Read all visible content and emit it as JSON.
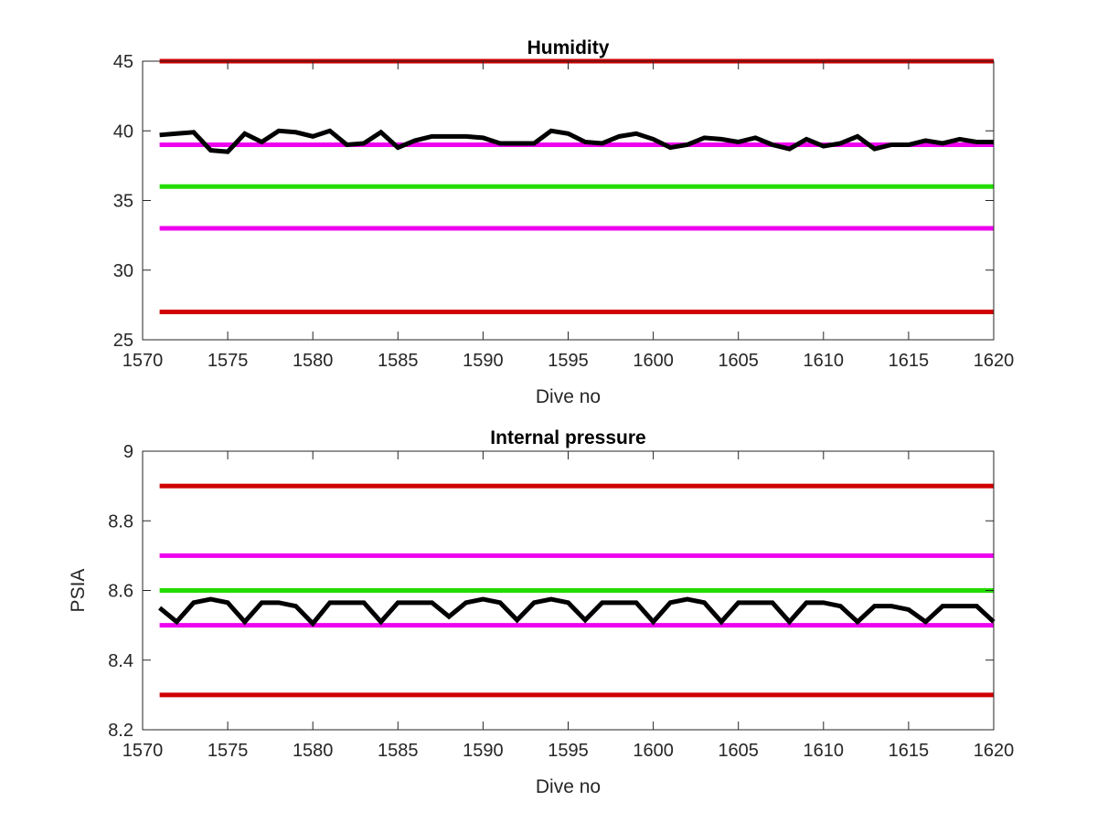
{
  "chart_data": [
    {
      "type": "line",
      "title": "Humidity",
      "xlabel": "Dive no",
      "ylabel": "",
      "xlim": [
        1570,
        1620
      ],
      "ylim": [
        25,
        45
      ],
      "xticks": [
        1570,
        1575,
        1580,
        1585,
        1590,
        1595,
        1600,
        1605,
        1610,
        1615,
        1620
      ],
      "yticks": [
        25,
        30,
        35,
        40,
        45
      ],
      "xtick_labels": [
        "1570",
        "1575",
        "1580",
        "1585",
        "1590",
        "1595",
        "1600",
        "1605",
        "1610",
        "1615",
        "1620"
      ],
      "ytick_labels": [
        "25",
        "30",
        "35",
        "40",
        "45"
      ],
      "grid": false,
      "series": [
        {
          "color": "#000000",
          "x": [
            1571,
            1572,
            1573,
            1574,
            1575,
            1576,
            1577,
            1578,
            1579,
            1580,
            1581,
            1582,
            1583,
            1584,
            1585,
            1586,
            1587,
            1588,
            1589,
            1590,
            1591,
            1592,
            1593,
            1594,
            1595,
            1596,
            1597,
            1598,
            1599,
            1600,
            1601,
            1602,
            1603,
            1604,
            1605,
            1606,
            1607,
            1608,
            1609,
            1610,
            1611,
            1612,
            1613,
            1614,
            1615,
            1616,
            1617,
            1618,
            1619,
            1620
          ],
          "values": [
            39.7,
            39.8,
            39.9,
            38.6,
            38.5,
            39.8,
            39.2,
            40.0,
            39.9,
            39.6,
            40.0,
            39.0,
            39.1,
            39.9,
            38.8,
            39.3,
            39.6,
            39.6,
            39.6,
            39.5,
            39.1,
            39.1,
            39.1,
            40.0,
            39.8,
            39.2,
            39.1,
            39.6,
            39.8,
            39.4,
            38.8,
            39.0,
            39.5,
            39.4,
            39.2,
            39.5,
            39.0,
            38.7,
            39.4,
            38.9,
            39.1,
            39.6,
            38.7,
            39.0,
            39.0,
            39.3,
            39.1,
            39.4,
            39.2,
            39.2
          ]
        },
        {
          "color": "#d00000",
          "x": [
            1571,
            1620
          ],
          "values": [
            45,
            45
          ]
        },
        {
          "color": "#ee00ee",
          "x": [
            1571,
            1620
          ],
          "values": [
            39,
            39
          ]
        },
        {
          "color": "#22dd00",
          "x": [
            1571,
            1620
          ],
          "values": [
            36,
            36
          ]
        },
        {
          "color": "#ee00ee",
          "x": [
            1571,
            1620
          ],
          "values": [
            33,
            33
          ]
        },
        {
          "color": "#d00000",
          "x": [
            1571,
            1620
          ],
          "values": [
            27,
            27
          ]
        }
      ]
    },
    {
      "type": "line",
      "title": "Internal pressure",
      "xlabel": "Dive no",
      "ylabel": "PSIA",
      "xlim": [
        1570,
        1620
      ],
      "ylim": [
        8.2,
        9
      ],
      "xticks": [
        1570,
        1575,
        1580,
        1585,
        1590,
        1595,
        1600,
        1605,
        1610,
        1615,
        1620
      ],
      "yticks": [
        8.2,
        8.4,
        8.6,
        8.8,
        9
      ],
      "xtick_labels": [
        "1570",
        "1575",
        "1580",
        "1585",
        "1590",
        "1595",
        "1600",
        "1605",
        "1610",
        "1615",
        "1620"
      ],
      "ytick_labels": [
        "8.2",
        "8.4",
        "8.6",
        "8.8",
        "9"
      ],
      "grid": false,
      "series": [
        {
          "color": "#000000",
          "x": [
            1571,
            1572,
            1573,
            1574,
            1575,
            1576,
            1577,
            1578,
            1579,
            1580,
            1581,
            1582,
            1583,
            1584,
            1585,
            1586,
            1587,
            1588,
            1589,
            1590,
            1591,
            1592,
            1593,
            1594,
            1595,
            1596,
            1597,
            1598,
            1599,
            1600,
            1601,
            1602,
            1603,
            1604,
            1605,
            1606,
            1607,
            1608,
            1609,
            1610,
            1611,
            1612,
            1613,
            1614,
            1615,
            1616,
            1617,
            1618,
            1619,
            1620
          ],
          "values": [
            8.55,
            8.51,
            8.565,
            8.575,
            8.565,
            8.51,
            8.565,
            8.565,
            8.555,
            8.505,
            8.565,
            8.565,
            8.565,
            8.51,
            8.565,
            8.565,
            8.565,
            8.525,
            8.565,
            8.575,
            8.565,
            8.515,
            8.565,
            8.575,
            8.565,
            8.515,
            8.565,
            8.565,
            8.565,
            8.51,
            8.565,
            8.575,
            8.565,
            8.51,
            8.565,
            8.565,
            8.565,
            8.51,
            8.565,
            8.565,
            8.555,
            8.51,
            8.555,
            8.555,
            8.545,
            8.51,
            8.555,
            8.555,
            8.555,
            8.51
          ]
        },
        {
          "color": "#d00000",
          "x": [
            1571,
            1620
          ],
          "values": [
            8.9,
            8.9
          ]
        },
        {
          "color": "#ee00ee",
          "x": [
            1571,
            1620
          ],
          "values": [
            8.7,
            8.7
          ]
        },
        {
          "color": "#22dd00",
          "x": [
            1571,
            1620
          ],
          "values": [
            8.6,
            8.6
          ]
        },
        {
          "color": "#ee00ee",
          "x": [
            1571,
            1620
          ],
          "values": [
            8.5,
            8.5
          ]
        },
        {
          "color": "#d00000",
          "x": [
            1571,
            1620
          ],
          "values": [
            8.3,
            8.3
          ]
        }
      ]
    }
  ]
}
